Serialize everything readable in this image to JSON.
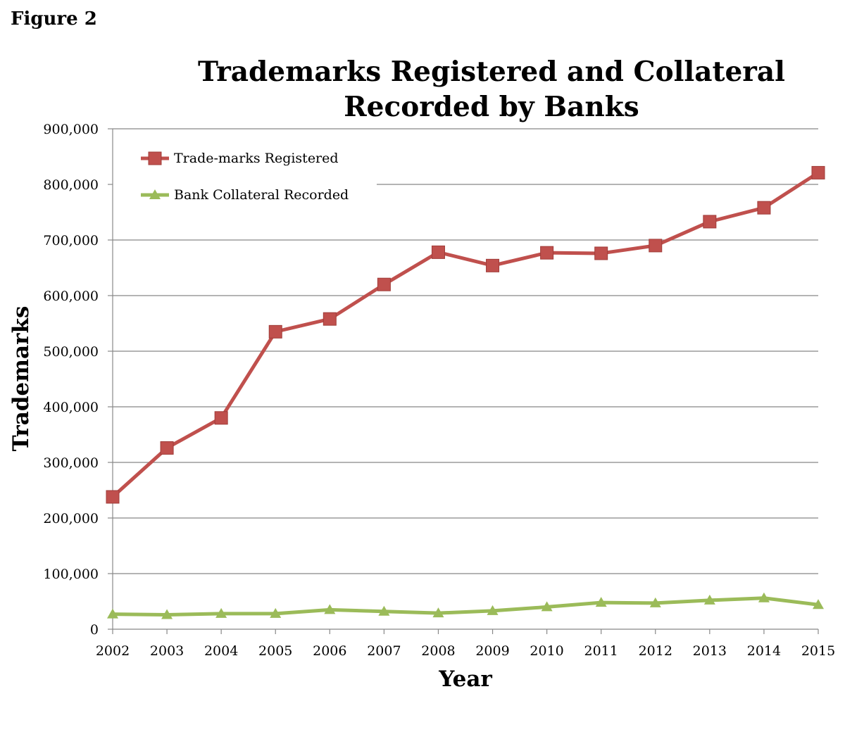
{
  "figure_label": "Figure 2",
  "chart_data": {
    "type": "line",
    "title_lines": [
      "Trademarks Registered and Collateral",
      "Recorded by Banks"
    ],
    "xlabel": "Year",
    "ylabel": "Trademarks",
    "x": [
      "2002",
      "2003",
      "2004",
      "2005",
      "2006",
      "2007",
      "2008",
      "2009",
      "2010",
      "2011",
      "2012",
      "2013",
      "2014",
      "2015"
    ],
    "ylim": [
      0,
      900000
    ],
    "yticks": [
      0,
      100000,
      200000,
      300000,
      400000,
      500000,
      600000,
      700000,
      800000,
      900000
    ],
    "ytick_labels": [
      "0",
      "100,000",
      "200,000",
      "300,000",
      "400,000",
      "500,000",
      "600,000",
      "700,000",
      "800,000",
      "900,000"
    ],
    "grid": true,
    "legend_position": "top-left",
    "series": [
      {
        "name": "Trade-marks Registered",
        "color": "#c0504d",
        "marker": "square",
        "values": [
          238000,
          326000,
          380000,
          535000,
          558000,
          620000,
          678000,
          654000,
          677000,
          676000,
          690000,
          733000,
          758000,
          821000
        ]
      },
      {
        "name": "Bank Collateral Recorded",
        "color": "#9bbb59",
        "marker": "triangle",
        "values": [
          27000,
          26000,
          28000,
          28000,
          35000,
          32000,
          29000,
          33000,
          40000,
          48000,
          47000,
          52000,
          56000,
          44000
        ]
      }
    ]
  }
}
